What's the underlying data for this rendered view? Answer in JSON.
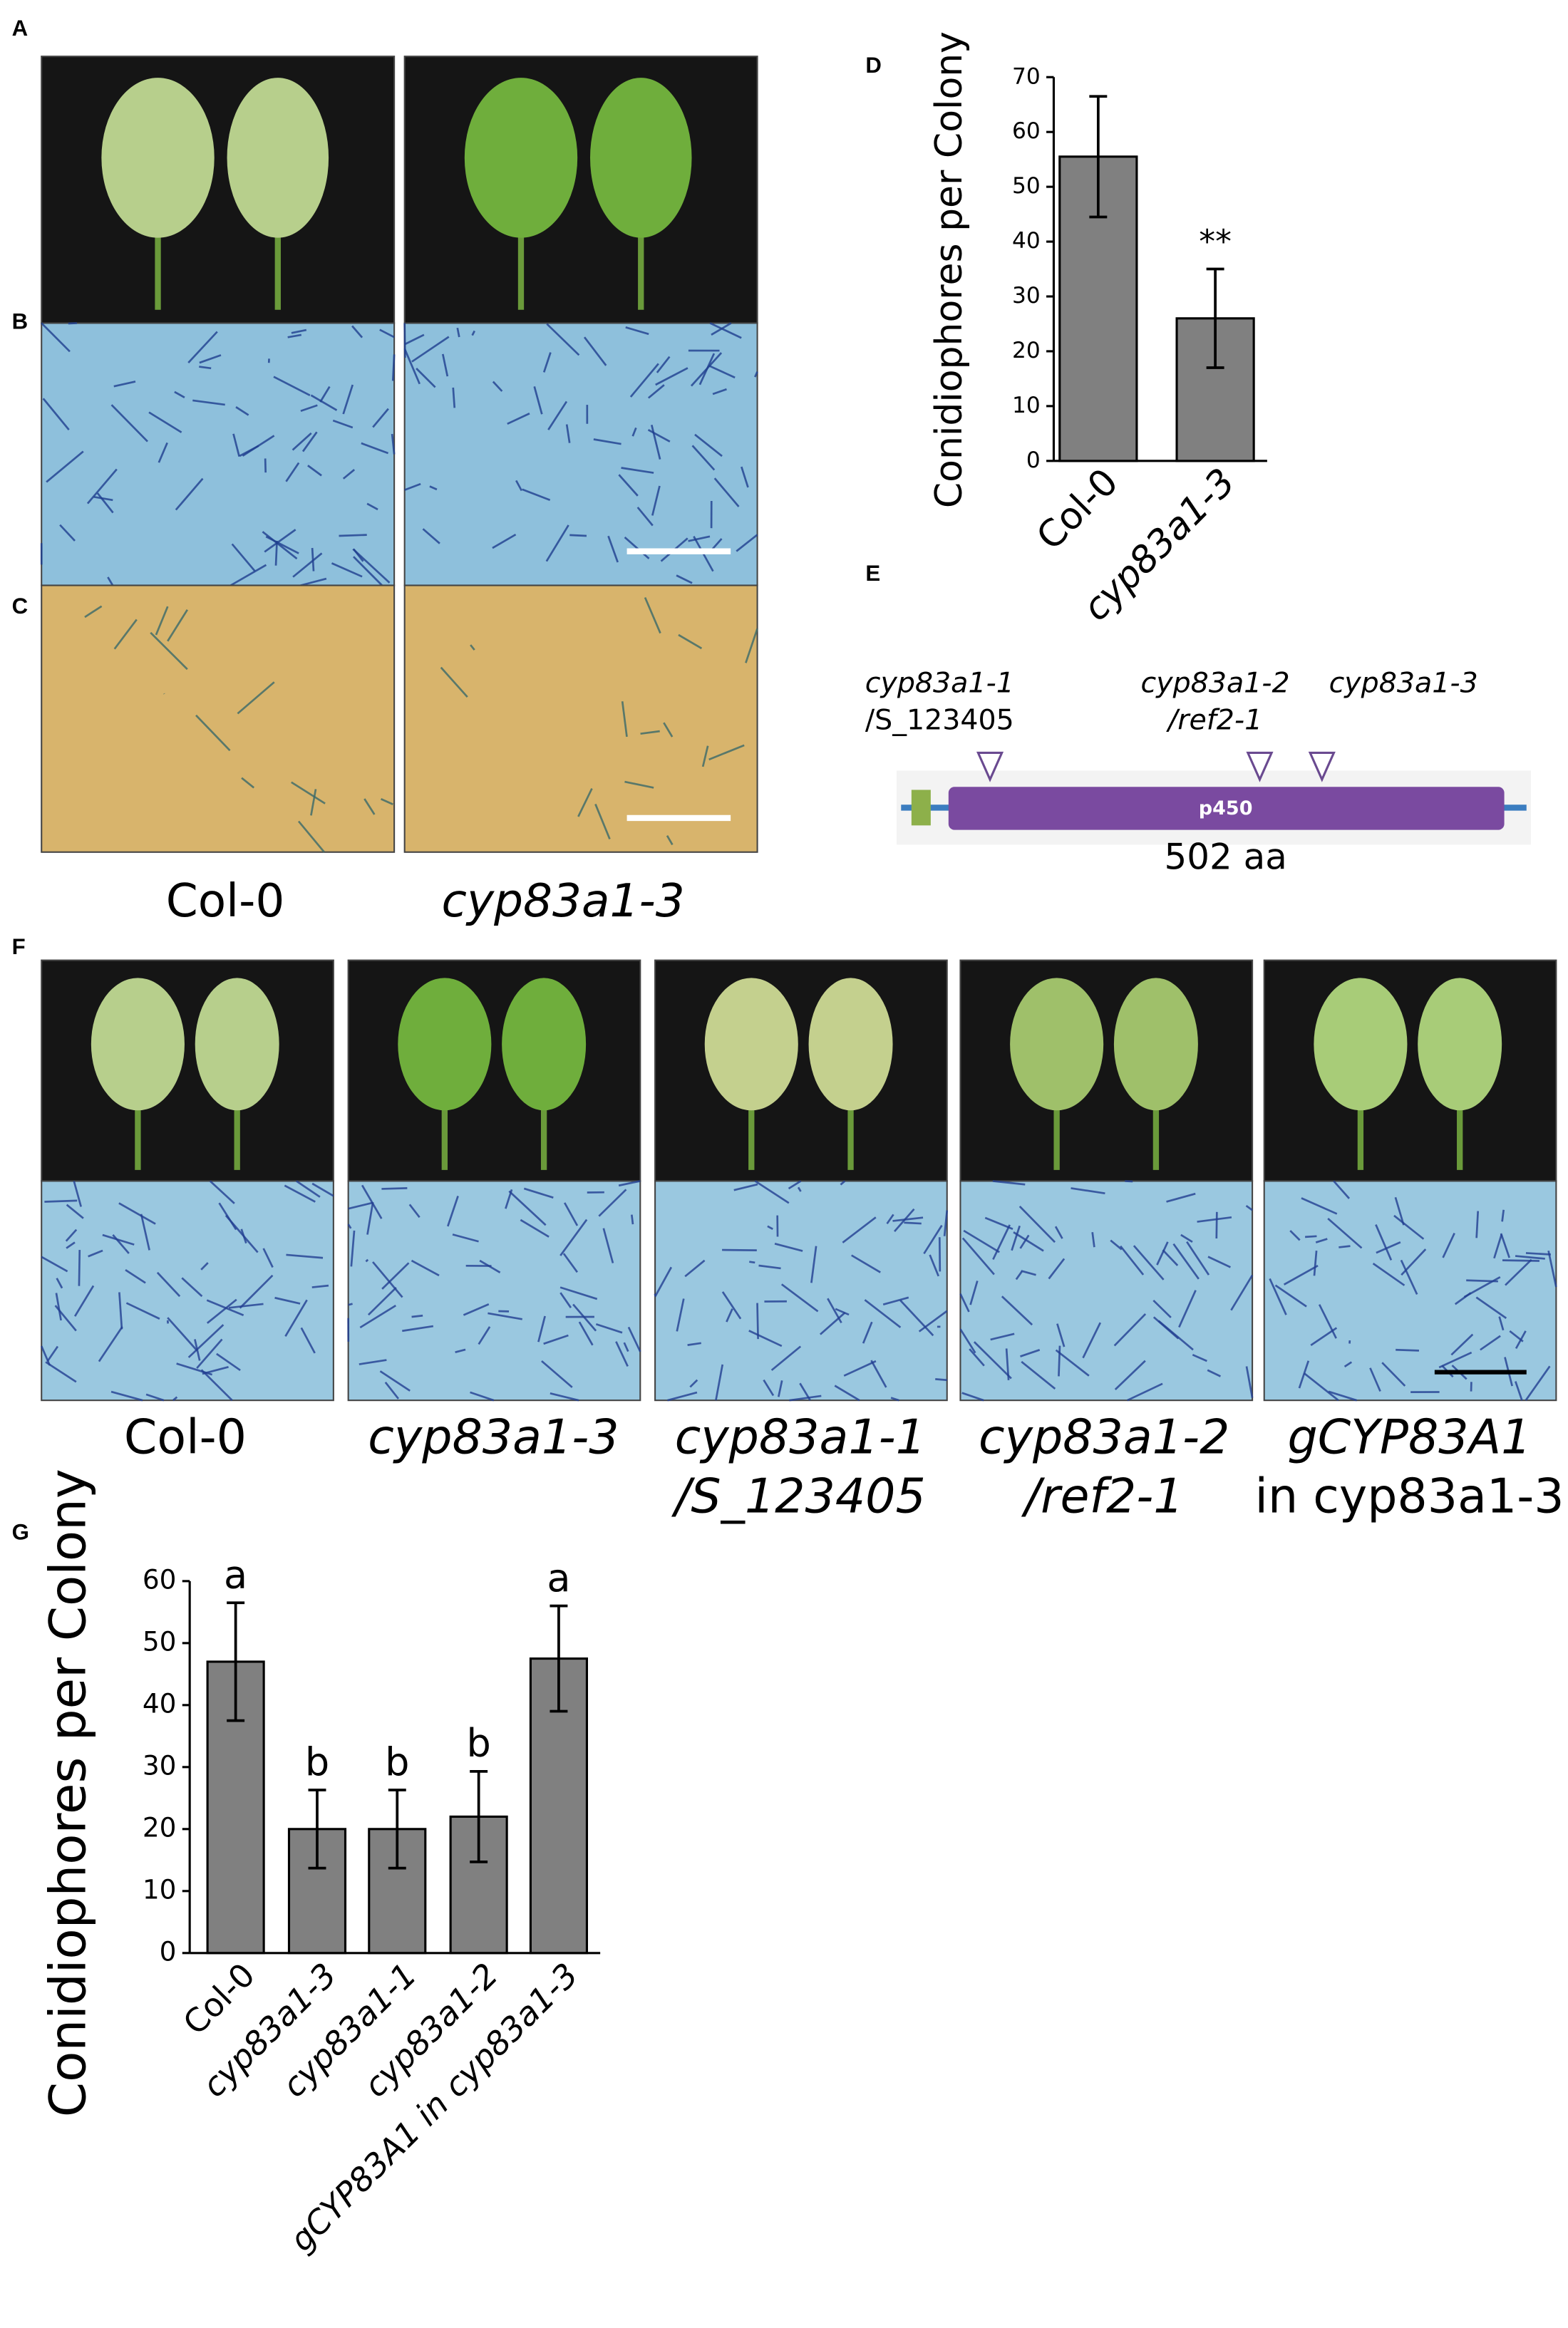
{
  "panels": {
    "letters": [
      "A",
      "B",
      "C",
      "D",
      "E",
      "F",
      "G"
    ],
    "a_captions": [
      "Col-0",
      "cyp83a1-3"
    ],
    "e_labels": {
      "m1": [
        "cyp83a1-1",
        "/S_123405"
      ],
      "m2": [
        "cyp83a1-2",
        "/ref2-1"
      ],
      "m3": "cyp83a1-3",
      "domain": "p450",
      "length": "502 aa"
    },
    "f_captions": [
      [
        "Col-0"
      ],
      [
        "cyp83a1-3"
      ],
      [
        "cyp83a1-1",
        "/S_123405"
      ],
      [
        "cyp83a1-2",
        "/ref2-1"
      ],
      [
        "gCYP83A1",
        "in cyp83a1-3"
      ]
    ]
  },
  "chart_data": [
    {
      "type": "bar",
      "ylabel": "Conidiophores per Colony",
      "categories": [
        "Col-0",
        "cyp83a1-3"
      ],
      "values": [
        55.5,
        26
      ],
      "errors": [
        11,
        9
      ],
      "annotations": [
        null,
        "**"
      ],
      "color": "#808080",
      "ylim": [
        0,
        70
      ],
      "yticks": [
        0,
        10,
        20,
        30,
        40,
        50,
        60,
        70
      ]
    },
    {
      "type": "bar",
      "ylabel": "Conidiophores per Colony",
      "categories": [
        "Col-0",
        "cyp83a1-3",
        "cyp83a1-1",
        "cyp83a1-2",
        "gCYP83A1 in cyp83a1-3"
      ],
      "values": [
        47,
        20,
        20,
        22,
        47.5
      ],
      "errors": [
        9.5,
        6.3,
        6.3,
        7.3,
        8.5
      ],
      "annotations": [
        "a",
        "b",
        "b",
        "b",
        "a"
      ],
      "color": "#808080",
      "ylim": [
        0,
        60
      ],
      "yticks": [
        0,
        10,
        20,
        30,
        40,
        50,
        60
      ]
    }
  ]
}
